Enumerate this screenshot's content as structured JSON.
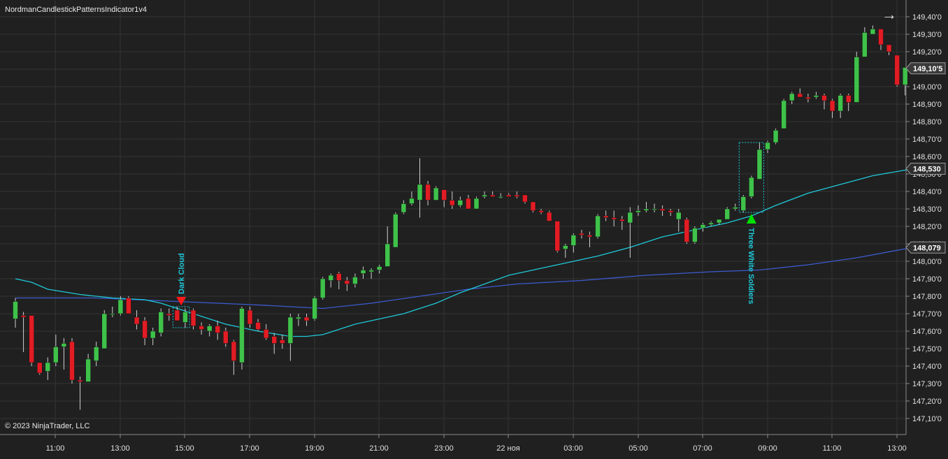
{
  "indicator_title": "NordmanCandlestickPatternsIndicator1v4",
  "copyright": "© 2023 NinjaTrader, LLC",
  "scroll_icon": "arrow-right-icon",
  "colors": {
    "background": "#202020",
    "grid": "#333333",
    "up_candle": "#3fc24a",
    "down_candle": "#e21c24",
    "wick": "#d0d0d0",
    "fast_ma": "#1ec8d8",
    "slow_ma": "#3c5bd0",
    "pattern_label": "#1ec8d8",
    "bearish_marker": "#ff1a1a",
    "bullish_marker": "#00e000"
  },
  "chart_data": {
    "type": "candlestick",
    "y_ticks": [
      "149,40'0",
      "149,30'0",
      "149,20'0",
      "149,10'0",
      "149,00'0",
      "148,90'0",
      "148,80'0",
      "148,70'0",
      "148,60'0",
      "148,50'0",
      "148,40'0",
      "148,30'0",
      "148,20'0",
      "148,10'0",
      "148,00'0",
      "147,90'0",
      "147,80'0",
      "147,70'0",
      "147,60'0",
      "147,50'0",
      "147,40'0",
      "147,30'0",
      "147,20'0",
      "147,10'0"
    ],
    "y_tick_values": [
      149.4,
      149.3,
      149.2,
      149.1,
      149.0,
      148.9,
      148.8,
      148.7,
      148.6,
      148.5,
      148.4,
      148.3,
      148.2,
      148.1,
      148.0,
      147.9,
      147.8,
      147.7,
      147.6,
      147.5,
      147.4,
      147.3,
      147.2,
      147.1
    ],
    "x_ticks": [
      "11:00",
      "13:00",
      "15:00",
      "17:00",
      "19:00",
      "21:00",
      "23:00",
      "22 ноя",
      "03:00",
      "05:00",
      "07:00",
      "09:00",
      "11:00",
      "13:00"
    ],
    "ylim": [
      147.02,
      149.47
    ],
    "grid": true,
    "price_markers": [
      {
        "label": "149,10'5",
        "value": 149.105,
        "style": "last-price"
      },
      {
        "label": "148,530",
        "value": 148.53,
        "style": "fast-ma"
      },
      {
        "label": "148,079",
        "value": 148.079,
        "style": "slow-ma"
      }
    ],
    "candles": [
      {
        "o": 147.67,
        "h": 147.79,
        "l": 147.62,
        "c": 147.77
      },
      {
        "o": 147.69,
        "h": 147.71,
        "l": 147.48,
        "c": 147.68
      },
      {
        "o": 147.69,
        "h": 147.69,
        "l": 147.4,
        "c": 147.42
      },
      {
        "o": 147.42,
        "h": 147.42,
        "l": 147.35,
        "c": 147.36
      },
      {
        "o": 147.37,
        "h": 147.45,
        "l": 147.32,
        "c": 147.42
      },
      {
        "o": 147.42,
        "h": 147.58,
        "l": 147.4,
        "c": 147.51
      },
      {
        "o": 147.51,
        "h": 147.56,
        "l": 147.38,
        "c": 147.53
      },
      {
        "o": 147.54,
        "h": 147.56,
        "l": 147.3,
        "c": 147.32
      },
      {
        "o": 147.32,
        "h": 147.34,
        "l": 147.15,
        "c": 147.31
      },
      {
        "o": 147.31,
        "h": 147.47,
        "l": 147.31,
        "c": 147.44
      },
      {
        "o": 147.43,
        "h": 147.54,
        "l": 147.4,
        "c": 147.51
      },
      {
        "o": 147.5,
        "h": 147.72,
        "l": 147.5,
        "c": 147.7
      },
      {
        "o": 147.7,
        "h": 147.74,
        "l": 147.68,
        "c": 147.7
      },
      {
        "o": 147.7,
        "h": 147.8,
        "l": 147.69,
        "c": 147.78
      },
      {
        "o": 147.79,
        "h": 147.8,
        "l": 147.7,
        "c": 147.7
      },
      {
        "o": 147.68,
        "h": 147.72,
        "l": 147.61,
        "c": 147.64
      },
      {
        "o": 147.66,
        "h": 147.68,
        "l": 147.52,
        "c": 147.56
      },
      {
        "o": 147.56,
        "h": 147.62,
        "l": 147.52,
        "c": 147.6
      },
      {
        "o": 147.59,
        "h": 147.73,
        "l": 147.57,
        "c": 147.71
      },
      {
        "o": 147.7,
        "h": 147.73,
        "l": 147.66,
        "c": 147.69
      },
      {
        "o": 147.72,
        "h": 147.74,
        "l": 147.66,
        "c": 147.66
      },
      {
        "o": 147.65,
        "h": 147.73,
        "l": 147.62,
        "c": 147.71
      },
      {
        "o": 147.72,
        "h": 147.73,
        "l": 147.61,
        "c": 147.63
      },
      {
        "o": 147.63,
        "h": 147.65,
        "l": 147.58,
        "c": 147.61
      },
      {
        "o": 147.6,
        "h": 147.64,
        "l": 147.57,
        "c": 147.63
      },
      {
        "o": 147.63,
        "h": 147.66,
        "l": 147.55,
        "c": 147.59
      },
      {
        "o": 147.6,
        "h": 147.62,
        "l": 147.51,
        "c": 147.53
      },
      {
        "o": 147.54,
        "h": 147.55,
        "l": 147.35,
        "c": 147.43
      },
      {
        "o": 147.42,
        "h": 147.74,
        "l": 147.38,
        "c": 147.73
      },
      {
        "o": 147.72,
        "h": 147.74,
        "l": 147.62,
        "c": 147.64
      },
      {
        "o": 147.65,
        "h": 147.67,
        "l": 147.6,
        "c": 147.61
      },
      {
        "o": 147.61,
        "h": 147.64,
        "l": 147.55,
        "c": 147.56
      },
      {
        "o": 147.57,
        "h": 147.59,
        "l": 147.47,
        "c": 147.53
      },
      {
        "o": 147.55,
        "h": 147.58,
        "l": 147.5,
        "c": 147.53
      },
      {
        "o": 147.53,
        "h": 147.7,
        "l": 147.43,
        "c": 147.68
      },
      {
        "o": 147.67,
        "h": 147.7,
        "l": 147.63,
        "c": 147.68
      },
      {
        "o": 147.68,
        "h": 147.7,
        "l": 147.63,
        "c": 147.66
      },
      {
        "o": 147.67,
        "h": 147.8,
        "l": 147.66,
        "c": 147.79
      },
      {
        "o": 147.79,
        "h": 147.91,
        "l": 147.78,
        "c": 147.9
      },
      {
        "o": 147.89,
        "h": 147.93,
        "l": 147.85,
        "c": 147.92
      },
      {
        "o": 147.93,
        "h": 147.94,
        "l": 147.84,
        "c": 147.89
      },
      {
        "o": 147.89,
        "h": 147.91,
        "l": 147.83,
        "c": 147.87
      },
      {
        "o": 147.87,
        "h": 147.93,
        "l": 147.85,
        "c": 147.91
      },
      {
        "o": 147.93,
        "h": 147.97,
        "l": 147.9,
        "c": 147.95
      },
      {
        "o": 147.94,
        "h": 147.96,
        "l": 147.9,
        "c": 147.95
      },
      {
        "o": 147.95,
        "h": 147.98,
        "l": 147.93,
        "c": 147.97
      },
      {
        "o": 147.97,
        "h": 148.2,
        "l": 147.97,
        "c": 148.1
      },
      {
        "o": 148.08,
        "h": 148.28,
        "l": 148.08,
        "c": 148.27
      },
      {
        "o": 148.28,
        "h": 148.35,
        "l": 148.27,
        "c": 148.33
      },
      {
        "o": 148.33,
        "h": 148.4,
        "l": 148.32,
        "c": 148.36
      },
      {
        "o": 148.35,
        "h": 148.59,
        "l": 148.25,
        "c": 148.44
      },
      {
        "o": 148.44,
        "h": 148.46,
        "l": 148.32,
        "c": 148.35
      },
      {
        "o": 148.35,
        "h": 148.43,
        "l": 148.35,
        "c": 148.42
      },
      {
        "o": 148.41,
        "h": 148.41,
        "l": 148.31,
        "c": 148.35
      },
      {
        "o": 148.35,
        "h": 148.4,
        "l": 148.3,
        "c": 148.32
      },
      {
        "o": 148.32,
        "h": 148.37,
        "l": 148.31,
        "c": 148.35
      },
      {
        "o": 148.36,
        "h": 148.38,
        "l": 148.3,
        "c": 148.3
      },
      {
        "o": 148.3,
        "h": 148.37,
        "l": 148.3,
        "c": 148.36
      },
      {
        "o": 148.37,
        "h": 148.4,
        "l": 148.36,
        "c": 148.38
      },
      {
        "o": 148.38,
        "h": 148.4,
        "l": 148.37,
        "c": 148.37
      },
      {
        "o": 148.37,
        "h": 148.39,
        "l": 148.36,
        "c": 148.37
      },
      {
        "o": 148.38,
        "h": 148.39,
        "l": 148.37,
        "c": 148.37
      },
      {
        "o": 148.38,
        "h": 148.4,
        "l": 148.36,
        "c": 148.37
      },
      {
        "o": 148.38,
        "h": 148.38,
        "l": 148.33,
        "c": 148.34
      },
      {
        "o": 148.34,
        "h": 148.34,
        "l": 148.28,
        "c": 148.29
      },
      {
        "o": 148.29,
        "h": 148.3,
        "l": 148.27,
        "c": 148.28
      },
      {
        "o": 148.28,
        "h": 148.29,
        "l": 148.23,
        "c": 148.23
      },
      {
        "o": 148.23,
        "h": 148.23,
        "l": 148.05,
        "c": 148.06
      },
      {
        "o": 148.07,
        "h": 148.1,
        "l": 148.02,
        "c": 148.09
      },
      {
        "o": 148.09,
        "h": 148.16,
        "l": 148.05,
        "c": 148.15
      },
      {
        "o": 148.16,
        "h": 148.18,
        "l": 148.13,
        "c": 148.15
      },
      {
        "o": 148.15,
        "h": 148.17,
        "l": 148.08,
        "c": 148.14
      },
      {
        "o": 148.14,
        "h": 148.27,
        "l": 148.13,
        "c": 148.26
      },
      {
        "o": 148.26,
        "h": 148.29,
        "l": 148.23,
        "c": 148.25
      },
      {
        "o": 148.25,
        "h": 148.29,
        "l": 148.2,
        "c": 148.24
      },
      {
        "o": 148.24,
        "h": 148.26,
        "l": 148.18,
        "c": 148.23
      },
      {
        "o": 148.22,
        "h": 148.31,
        "l": 148.02,
        "c": 148.28
      },
      {
        "o": 148.28,
        "h": 148.32,
        "l": 148.26,
        "c": 148.29
      },
      {
        "o": 148.29,
        "h": 148.34,
        "l": 148.28,
        "c": 148.3
      },
      {
        "o": 148.3,
        "h": 148.33,
        "l": 148.28,
        "c": 148.3
      },
      {
        "o": 148.3,
        "h": 148.32,
        "l": 148.26,
        "c": 148.29
      },
      {
        "o": 148.29,
        "h": 148.3,
        "l": 148.26,
        "c": 148.28
      },
      {
        "o": 148.24,
        "h": 148.3,
        "l": 148.17,
        "c": 148.28
      },
      {
        "o": 148.24,
        "h": 148.25,
        "l": 148.1,
        "c": 148.11
      },
      {
        "o": 148.11,
        "h": 148.2,
        "l": 148.1,
        "c": 148.19
      },
      {
        "o": 148.19,
        "h": 148.22,
        "l": 148.17,
        "c": 148.21
      },
      {
        "o": 148.21,
        "h": 148.23,
        "l": 148.2,
        "c": 148.22
      },
      {
        "o": 148.22,
        "h": 148.24,
        "l": 148.21,
        "c": 148.24
      },
      {
        "o": 148.24,
        "h": 148.31,
        "l": 148.24,
        "c": 148.3
      },
      {
        "o": 148.3,
        "h": 148.33,
        "l": 148.29,
        "c": 148.31
      },
      {
        "o": 148.29,
        "h": 148.38,
        "l": 148.28,
        "c": 148.37
      },
      {
        "o": 148.37,
        "h": 148.49,
        "l": 148.36,
        "c": 148.48
      },
      {
        "o": 148.47,
        "h": 148.68,
        "l": 148.47,
        "c": 148.64
      },
      {
        "o": 148.64,
        "h": 148.69,
        "l": 148.62,
        "c": 148.68
      },
      {
        "o": 148.68,
        "h": 148.76,
        "l": 148.67,
        "c": 148.75
      },
      {
        "o": 148.76,
        "h": 148.93,
        "l": 148.76,
        "c": 148.92
      },
      {
        "o": 148.92,
        "h": 148.97,
        "l": 148.9,
        "c": 148.96
      },
      {
        "o": 148.96,
        "h": 148.99,
        "l": 148.94,
        "c": 148.94
      },
      {
        "o": 148.94,
        "h": 148.96,
        "l": 148.91,
        "c": 148.93
      },
      {
        "o": 148.94,
        "h": 148.97,
        "l": 148.93,
        "c": 148.95
      },
      {
        "o": 148.95,
        "h": 148.96,
        "l": 148.87,
        "c": 148.92
      },
      {
        "o": 148.92,
        "h": 148.93,
        "l": 148.82,
        "c": 148.86
      },
      {
        "o": 148.86,
        "h": 148.96,
        "l": 148.82,
        "c": 148.95
      },
      {
        "o": 148.95,
        "h": 148.96,
        "l": 148.86,
        "c": 148.91
      },
      {
        "o": 148.91,
        "h": 149.2,
        "l": 148.91,
        "c": 149.17
      },
      {
        "o": 149.17,
        "h": 149.34,
        "l": 149.17,
        "c": 149.31
      },
      {
        "o": 149.3,
        "h": 149.35,
        "l": 149.3,
        "c": 149.33
      },
      {
        "o": 149.33,
        "h": 149.33,
        "l": 149.21,
        "c": 149.24
      },
      {
        "o": 149.24,
        "h": 149.24,
        "l": 149.18,
        "c": 149.2
      },
      {
        "o": 149.18,
        "h": 149.18,
        "l": 149.0,
        "c": 149.01
      },
      {
        "o": 149.01,
        "h": 149.11,
        "l": 148.95,
        "c": 149.11
      }
    ],
    "fast_ma": [
      {
        "i": 0,
        "v": 147.9
      },
      {
        "i": 2,
        "v": 147.88
      },
      {
        "i": 4,
        "v": 147.84
      },
      {
        "i": 8,
        "v": 147.81
      },
      {
        "i": 12,
        "v": 147.79
      },
      {
        "i": 16,
        "v": 147.78
      },
      {
        "i": 18,
        "v": 147.76
      },
      {
        "i": 20,
        "v": 147.73
      },
      {
        "i": 22,
        "v": 147.7
      },
      {
        "i": 26,
        "v": 147.64
      },
      {
        "i": 30,
        "v": 147.6
      },
      {
        "i": 34,
        "v": 147.57
      },
      {
        "i": 36,
        "v": 147.57
      },
      {
        "i": 38,
        "v": 147.58
      },
      {
        "i": 40,
        "v": 147.61
      },
      {
        "i": 42,
        "v": 147.64
      },
      {
        "i": 44,
        "v": 147.66
      },
      {
        "i": 48,
        "v": 147.7
      },
      {
        "i": 52,
        "v": 147.76
      },
      {
        "i": 55,
        "v": 147.82
      },
      {
        "i": 58,
        "v": 147.87
      },
      {
        "i": 61,
        "v": 147.92
      },
      {
        "i": 64,
        "v": 147.95
      },
      {
        "i": 68,
        "v": 147.99
      },
      {
        "i": 72,
        "v": 148.03
      },
      {
        "i": 76,
        "v": 148.08
      },
      {
        "i": 80,
        "v": 148.14
      },
      {
        "i": 84,
        "v": 148.18
      },
      {
        "i": 88,
        "v": 148.22
      },
      {
        "i": 91,
        "v": 148.26
      },
      {
        "i": 94,
        "v": 148.32
      },
      {
        "i": 98,
        "v": 148.39
      },
      {
        "i": 102,
        "v": 148.44
      },
      {
        "i": 106,
        "v": 148.49
      },
      {
        "i": 111,
        "v": 148.53
      }
    ],
    "slow_ma": [
      {
        "i": 0,
        "v": 147.79
      },
      {
        "i": 10,
        "v": 147.79
      },
      {
        "i": 20,
        "v": 147.77
      },
      {
        "i": 30,
        "v": 147.75
      },
      {
        "i": 38,
        "v": 147.73
      },
      {
        "i": 44,
        "v": 147.76
      },
      {
        "i": 50,
        "v": 147.8
      },
      {
        "i": 56,
        "v": 147.84
      },
      {
        "i": 62,
        "v": 147.87
      },
      {
        "i": 70,
        "v": 147.89
      },
      {
        "i": 78,
        "v": 147.92
      },
      {
        "i": 86,
        "v": 147.94
      },
      {
        "i": 92,
        "v": 147.95
      },
      {
        "i": 98,
        "v": 147.98
      },
      {
        "i": 104,
        "v": 148.02
      },
      {
        "i": 111,
        "v": 148.08
      }
    ],
    "patterns": [
      {
        "label": "Dark Cloud",
        "from": 20,
        "to": 21,
        "direction": "bearish"
      },
      {
        "label": "Three White Soldiers",
        "from": 90,
        "to": 92,
        "direction": "bullish"
      }
    ]
  }
}
